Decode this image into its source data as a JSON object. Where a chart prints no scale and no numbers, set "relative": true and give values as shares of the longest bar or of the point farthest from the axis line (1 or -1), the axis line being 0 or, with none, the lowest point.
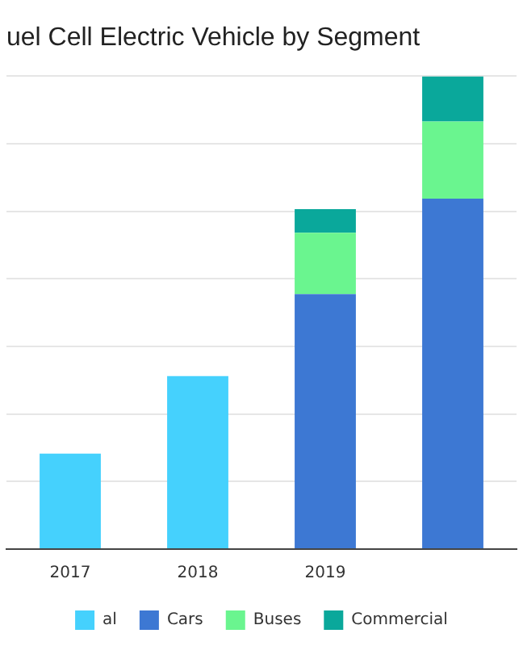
{
  "chart_data": {
    "type": "bar",
    "title": "uel Cell Electric Vehicle by Segment",
    "categories": [
      "2017",
      "2018",
      "2019",
      null
    ],
    "stacked": true,
    "relative": true,
    "grid": "y",
    "legend": "bottom",
    "series": [
      {
        "name": "al",
        "color": "#45d1fd",
        "values": [
          0.202,
          0.366,
          null,
          null
        ]
      },
      {
        "name": "Cars",
        "color": "#3d78d3",
        "values": [
          null,
          null,
          0.539,
          0.741
        ]
      },
      {
        "name": "Buses",
        "color": "#6af58f",
        "values": [
          null,
          null,
          0.13,
          0.163
        ]
      },
      {
        "name": "Commercial",
        "color": "#0aa89b",
        "values": [
          null,
          null,
          0.05,
          0.096
        ]
      }
    ]
  }
}
